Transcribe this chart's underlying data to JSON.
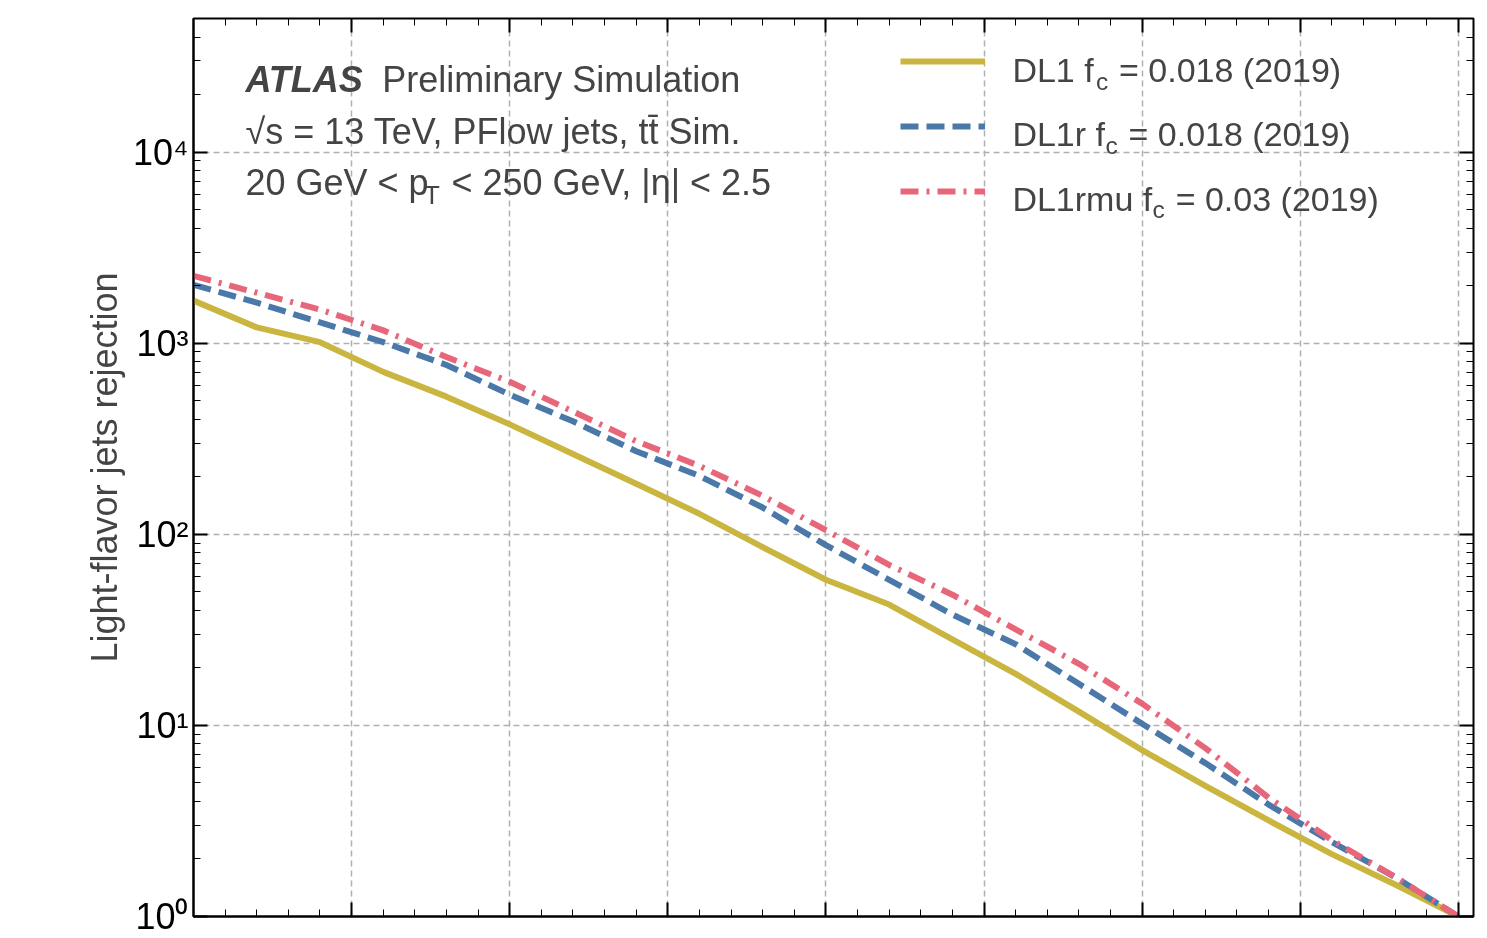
{
  "chart_data": {
    "type": "line",
    "ylabel": "Light-flavor jets rejection",
    "categories": [
      null,
      null,
      null,
      null,
      null,
      null,
      null,
      null,
      null,
      null,
      null,
      null,
      null,
      null,
      null,
      null,
      null,
      null,
      null,
      null,
      null
    ],
    "series": [
      {
        "name": "DL1 f$_{c}$ = 0.018 (2019)",
        "color": "#c9b53f",
        "line_style": "solid",
        "values": [
          1670,
          1210,
          1012,
          708,
          525,
          376,
          263,
          184,
          128,
          85.7,
          57.8,
          42.9,
          28.2,
          18.6,
          11.8,
          7.42,
          4.83,
          3.18,
          2.12,
          1.47,
          1.0
        ]
      },
      {
        "name": "DL1r f$_{c}$ = 0.018 (2019)",
        "color": "#4a78a8",
        "line_style": "dashed",
        "values": [
          2020,
          1630,
          1285,
          1012,
          769,
          538,
          390,
          272,
          202,
          138,
          87.7,
          57.8,
          38.0,
          26.6,
          16.5,
          10.2,
          6.35,
          3.85,
          2.45,
          1.61,
          1.0
        ]
      },
      {
        "name": "DL1rmu f$_{c}$ = 0.03 (2019)",
        "color": "#e8667a",
        "line_style": "dashdot",
        "values": [
          2250,
          1837,
          1500,
          1167,
          846,
          628,
          439,
          307,
          228,
          159,
          105,
          69.1,
          48.3,
          31.8,
          21.0,
          13.0,
          7.6,
          4.19,
          2.51,
          1.61,
          1.0
        ]
      }
    ],
    "log": true,
    "ylim": [
      1,
      50000
    ],
    "yticks": [
      {
        "value": 1,
        "label": "10⁰"
      },
      {
        "value": 10,
        "label": "10¹"
      },
      {
        "value": 100,
        "label": "10²"
      },
      {
        "value": 1000,
        "label": "10³"
      },
      {
        "value": 10000,
        "label": "10⁴"
      }
    ],
    "tick_labels": "y",
    "grid": true,
    "legend": "top right",
    "annotations": [
      "ATLAS Preliminary Simulation",
      "√s = 13 TeV, PFlow jets, tt̄ Sim.",
      "20 GeV < p$_{T}$ < 250 GeV, |η| < 2.5"
    ]
  }
}
